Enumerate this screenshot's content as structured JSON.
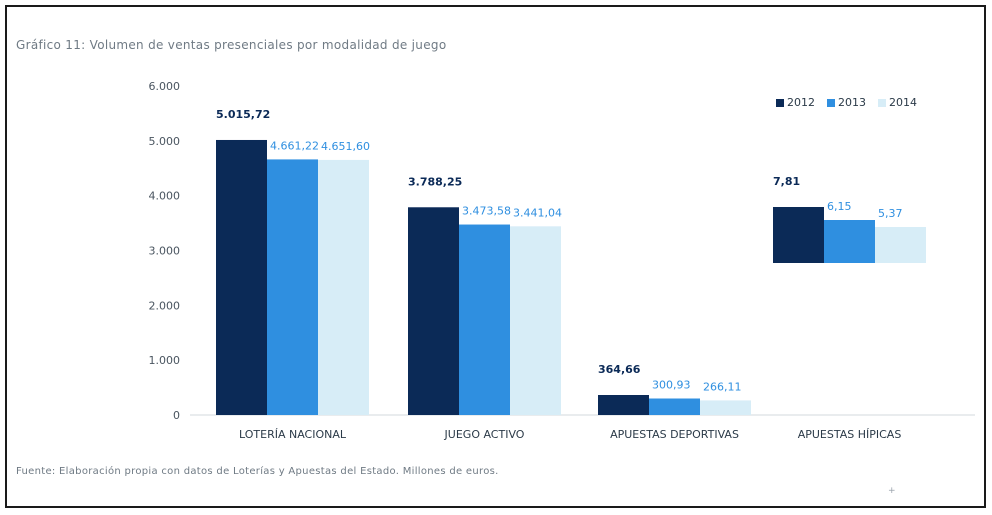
{
  "chart_data": {
    "type": "bar",
    "title": "Gráfico 11: Volumen de ventas presenciales por modalidad de juego",
    "xlabel": "",
    "ylabel": "",
    "ylim": [
      0,
      6000
    ],
    "yticks": [
      "0",
      "1.000",
      "2.000",
      "3.000",
      "4.000",
      "5.000",
      "6.000"
    ],
    "ytick_values": [
      0,
      1000,
      2000,
      3000,
      4000,
      5000,
      6000
    ],
    "categories": [
      "LOTERÍA NACIONAL",
      "JUEGO ACTIVO",
      "APUESTAS DEPORTIVAS",
      "APUESTAS HÍPICAS"
    ],
    "series": [
      {
        "name": "2012",
        "color": "#0b2a57",
        "values": [
          5015.72,
          3788.25,
          364.66,
          7.81
        ],
        "labels": [
          "5.015,72",
          "3.788,25",
          "364,66",
          "7,81"
        ]
      },
      {
        "name": "2013",
        "color": "#2f8fe0",
        "values": [
          4661.22,
          3473.58,
          300.93,
          6.15
        ],
        "labels": [
          "4.661,22",
          "3.473,58",
          "300,93",
          "6,15"
        ]
      },
      {
        "name": "2014",
        "color": "#d7edf7",
        "values": [
          4651.6,
          3441.04,
          266.11,
          5.37
        ],
        "labels": [
          "4.651,60",
          "3.441,04",
          "266,11",
          "5,37"
        ]
      }
    ],
    "legend_position": "top-right",
    "grid": false
  },
  "footer": "Fuente: Elaboración propia con datos de Loterías y Apuestas del Estado. Millones de euros.",
  "label_colors": {
    "2012": "#0b2a57",
    "2013": "#2f8fe0",
    "2014": "#2f8fe0"
  }
}
